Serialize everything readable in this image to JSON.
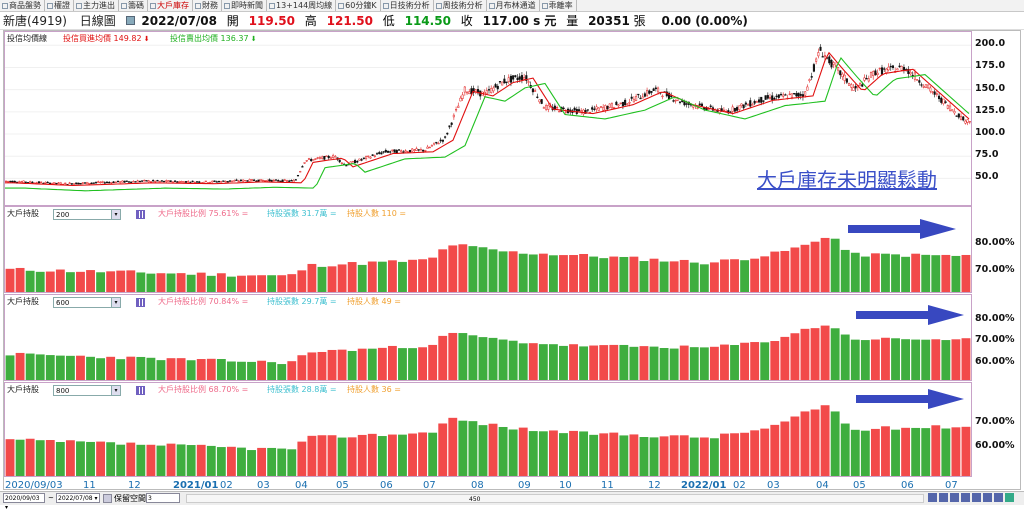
{
  "tabs": [
    "商品盤勢",
    "權證",
    "主力進出",
    "籌碼",
    "大戶庫存",
    "財務",
    "即時新聞",
    "13+144周均線",
    "60分鐘K",
    "日技術分析",
    "周技術分析",
    "月布林通道",
    "乖離率"
  ],
  "active_tab": "大戶庫存",
  "quote": {
    "name": "新唐(4919)",
    "period": "日線圖",
    "date": "2022/07/08",
    "open_label": "開",
    "open": "119.50",
    "high_label": "高",
    "high": "121.50",
    "low_label": "低",
    "low": "114.50",
    "close_label": "收",
    "close": "117.00 s 元",
    "volume_label": "量",
    "volume": "20351",
    "volume_unit": "張",
    "change": "0.00 (0.00%)"
  },
  "price_pane": {
    "label": "投信均價線",
    "buy_avg": "投信買進均價 149.82",
    "sell_avg": "投信賣出均價 136.37",
    "annotation": "大戶庫存未明顯鬆動",
    "y_ticks": [
      "200.0",
      "175.0",
      "150.0",
      "125.0",
      "100.0",
      "75.0",
      "50.0"
    ]
  },
  "holding_panes": [
    {
      "label": "大戶持股",
      "threshold": "200",
      "ratio": "大戶持股比例 75.61% =",
      "shares": "持股張數 31.7萬 =",
      "people": "持股人數 110 =",
      "y_ticks": [
        "80.00%",
        "70.00%"
      ]
    },
    {
      "label": "大戶持股",
      "threshold": "600",
      "ratio": "大戶持股比例 70.84% =",
      "shares": "持股張數 29.7萬 =",
      "people": "持股人數 49 =",
      "y_ticks": [
        "80.00%",
        "70.00%",
        "60.00%"
      ]
    },
    {
      "label": "大戶持股",
      "threshold": "800",
      "ratio": "大戶持股比例 68.70% =",
      "shares": "持股張數 28.8萬 =",
      "people": "持股人數 36 =",
      "y_ticks": [
        "70.00%",
        "60.00%"
      ]
    }
  ],
  "x_axis": [
    "2020/09/03",
    "11",
    "12",
    "2021/01",
    "02",
    "03",
    "04",
    "05",
    "06",
    "07",
    "08",
    "09",
    "10",
    "11",
    "12",
    "2022/01",
    "02",
    "03",
    "04",
    "05",
    "06",
    "07"
  ],
  "status": {
    "from_date": "2020/09/03",
    "to_date": "2022/07/08",
    "tilde": "~",
    "keep_space": "保留空間",
    "keep_value": "3",
    "count": "450"
  },
  "colors": {
    "up": "#f24a4a",
    "down": "#3fae3f",
    "buy_line": "#e01010",
    "sell_line": "#20c020",
    "arrow": "#3848c0",
    "annotation": "#3a4fc8"
  }
}
